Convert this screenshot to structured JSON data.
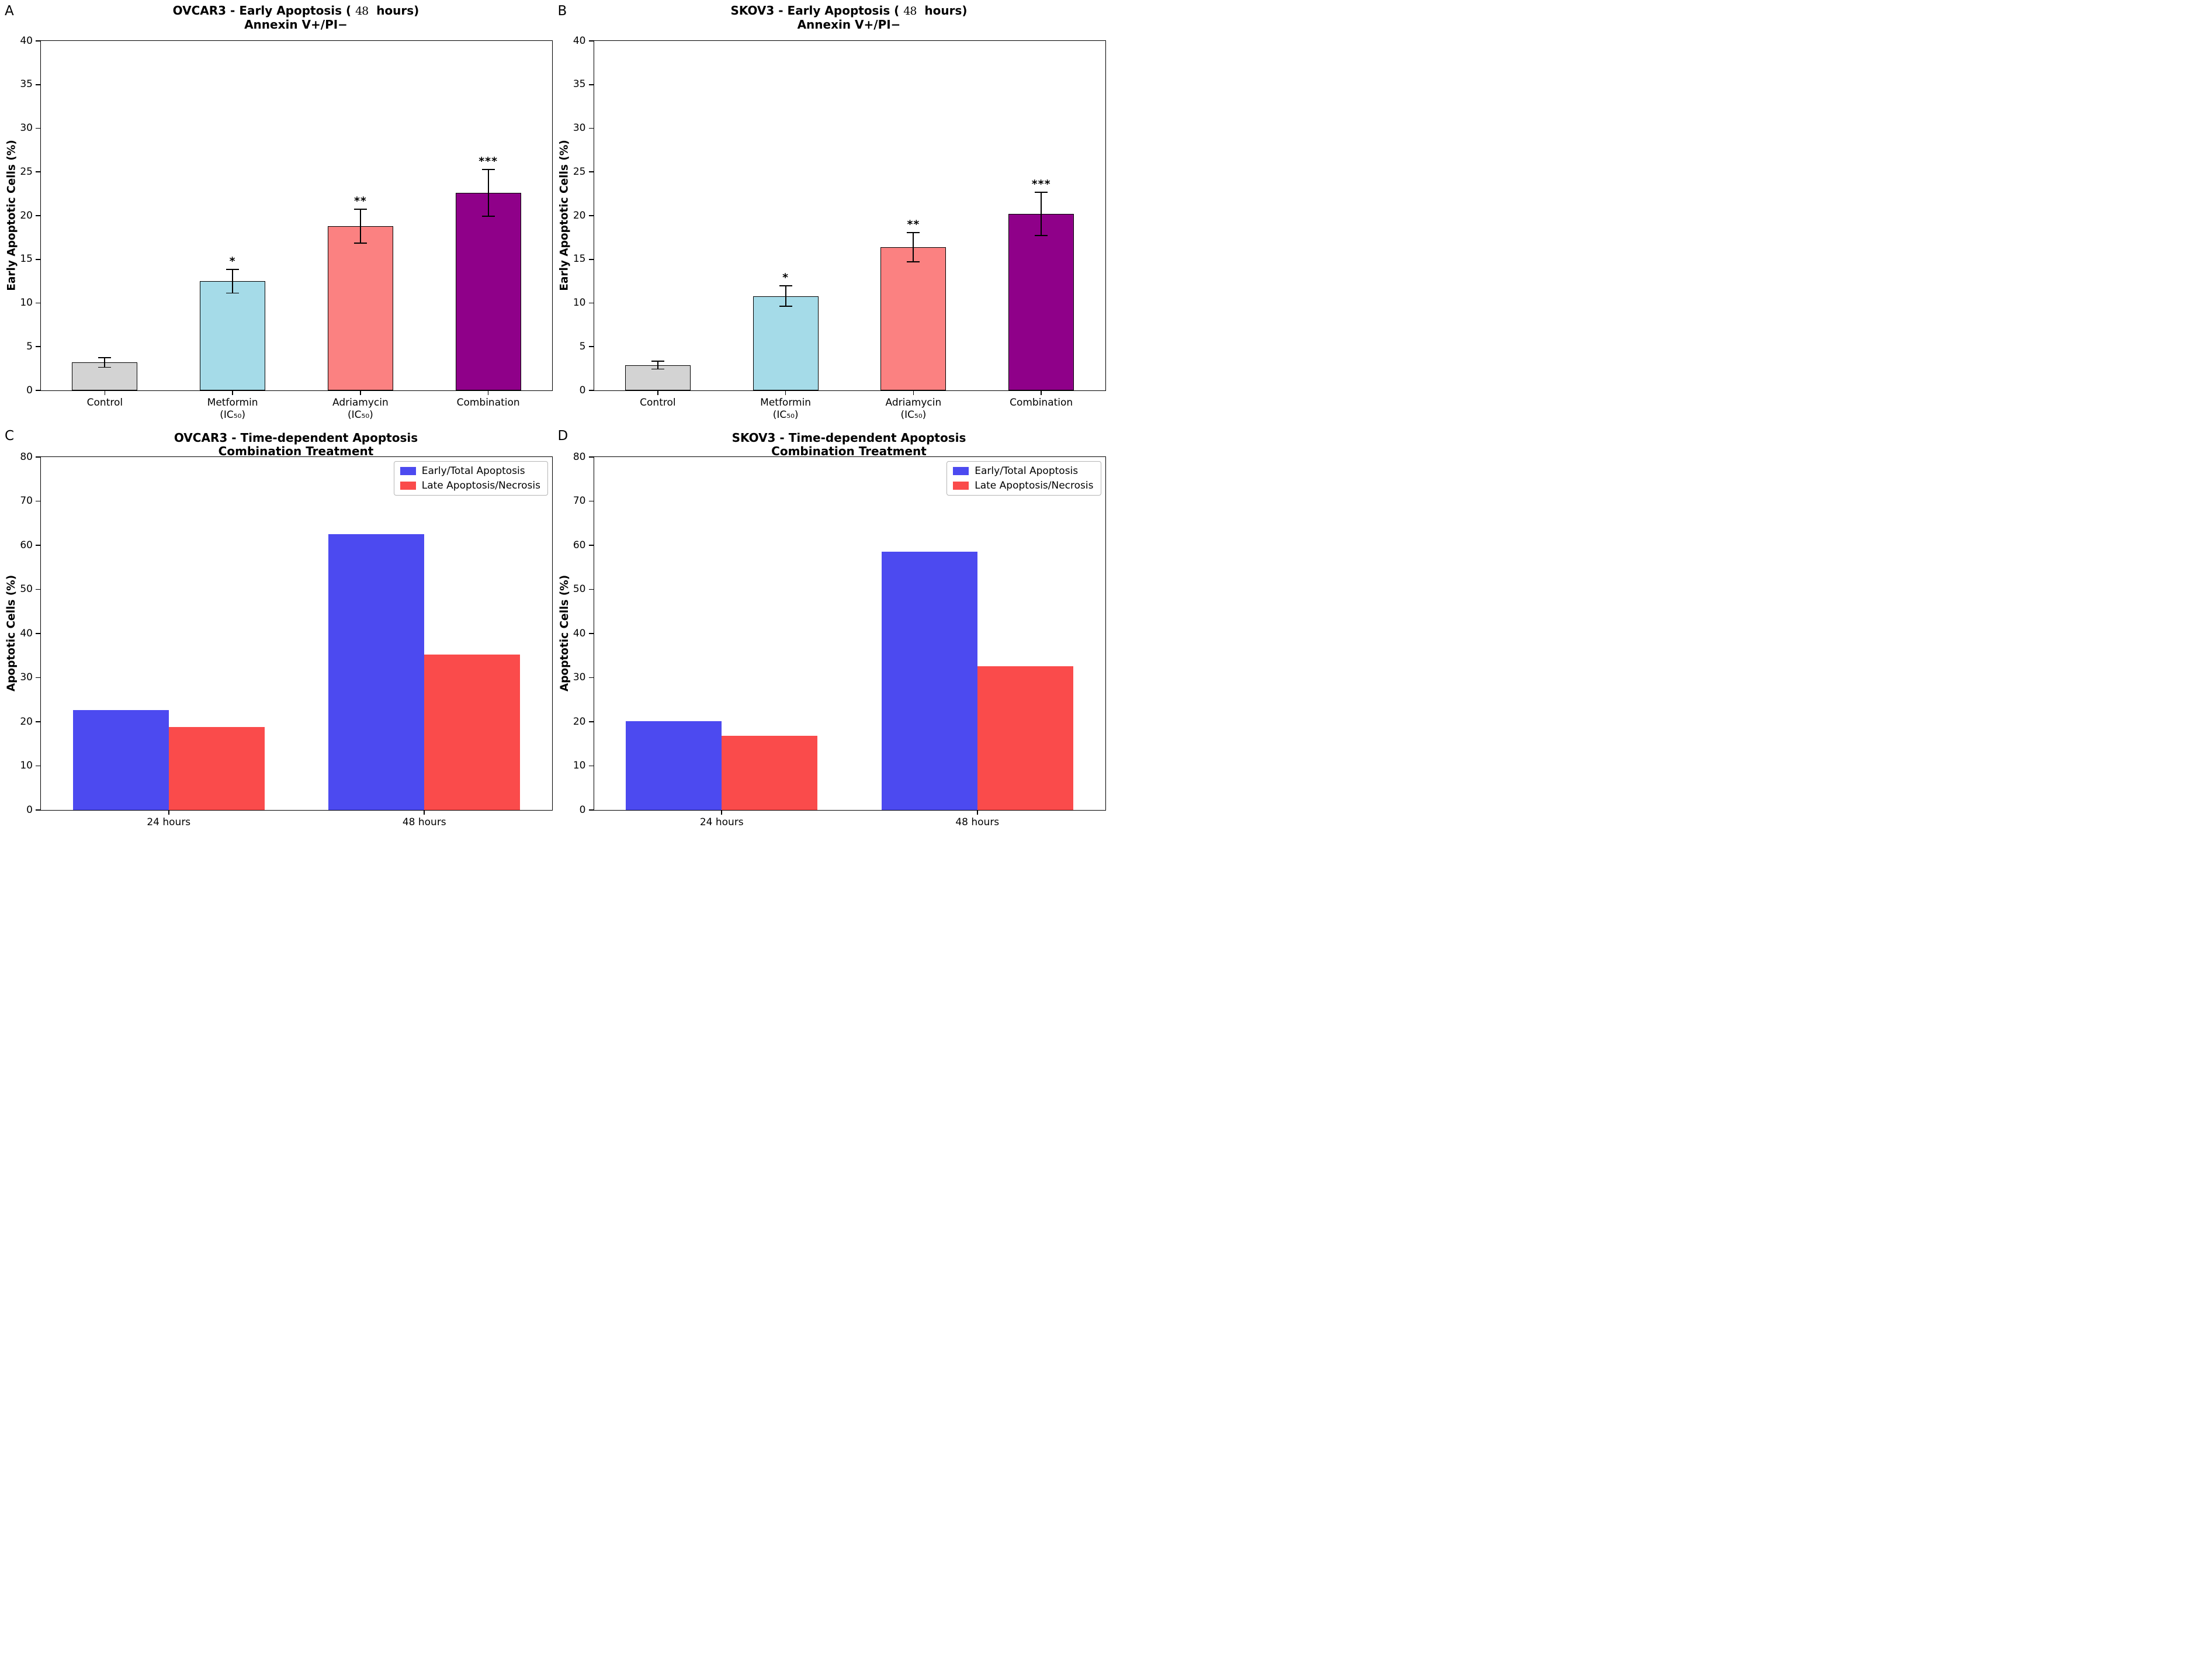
{
  "figure": {
    "panel_letters": [
      "A",
      "B",
      "C",
      "D"
    ],
    "background": "#ffffff",
    "significance_marks": [
      "*",
      "**",
      "***"
    ]
  },
  "chart_data": [
    {
      "type": "bar",
      "panel": "A",
      "title": "OVCAR3 - Early Apoptosis (48 hours)",
      "subtitle": "Annexin V+/PI−",
      "ylabel": "Early Apoptotic Cells (%)",
      "xlabel": "",
      "categories": [
        [
          "Control"
        ],
        [
          "Metformin",
          "(IC₅₀)"
        ],
        [
          "Adriamycin",
          "(IC₅₀)"
        ],
        [
          "Combination"
        ]
      ],
      "values": [
        3.2,
        12.5,
        18.8,
        22.6
      ],
      "errors": [
        0.5,
        1.3,
        1.9,
        2.6
      ],
      "significance": [
        "",
        "*",
        "**",
        "***"
      ],
      "bar_colors": [
        "#D3D3D3",
        "#A5DBE8",
        "#FB8181",
        "#8F0089"
      ],
      "bar_edge_color": "#000000",
      "ylim": [
        0,
        40
      ],
      "ytick_step": 5,
      "grid": false,
      "legend": null
    },
    {
      "type": "bar",
      "panel": "B",
      "title": "SKOV3 - Early Apoptosis (48 hours)",
      "subtitle": "Annexin V+/PI−",
      "ylabel": "Early Apoptotic Cells (%)",
      "xlabel": "",
      "categories": [
        [
          "Control"
        ],
        [
          "Metformin",
          "(IC₅₀)"
        ],
        [
          "Adriamycin",
          "(IC₅₀)"
        ],
        [
          "Combination"
        ]
      ],
      "values": [
        2.9,
        10.8,
        16.4,
        20.2
      ],
      "errors": [
        0.4,
        1.1,
        1.6,
        2.4
      ],
      "significance": [
        "",
        "*",
        "**",
        "***"
      ],
      "bar_colors": [
        "#D3D3D3",
        "#A5DBE8",
        "#FB8181",
        "#8F0089"
      ],
      "bar_edge_color": "#000000",
      "ylim": [
        0,
        40
      ],
      "ytick_step": 5,
      "grid": false,
      "legend": null
    },
    {
      "type": "bar",
      "panel": "C",
      "title": "OVCAR3 - Time-dependent Apoptosis",
      "subtitle": "Combination Treatment",
      "ylabel": "Apoptotic Cells (%)",
      "xlabel": "",
      "categories": [
        "24 hours",
        "48 hours"
      ],
      "series": [
        {
          "name": "Early/Total Apoptosis",
          "color": "#4C4AF0",
          "values": [
            22.6,
            62.5
          ]
        },
        {
          "name": "Late Apoptosis/Necrosis",
          "color": "#FA4B4B",
          "values": [
            18.8,
            35.3
          ]
        }
      ],
      "ylim": [
        0,
        80
      ],
      "ytick_step": 10,
      "grid": false,
      "legend_position": "upper right"
    },
    {
      "type": "bar",
      "panel": "D",
      "title": "SKOV3 - Time-dependent Apoptosis",
      "subtitle": "Combination Treatment",
      "ylabel": "Apoptotic Cells (%)",
      "xlabel": "",
      "categories": [
        "24 hours",
        "48 hours"
      ],
      "series": [
        {
          "name": "Early/Total Apoptosis",
          "color": "#4C4AF0",
          "values": [
            20.2,
            58.6
          ]
        },
        {
          "name": "Late Apoptosis/Necrosis",
          "color": "#FA4B4B",
          "values": [
            16.8,
            32.6
          ]
        }
      ],
      "ylim": [
        0,
        80
      ],
      "ytick_step": 10,
      "grid": false,
      "legend_position": "upper right"
    }
  ]
}
